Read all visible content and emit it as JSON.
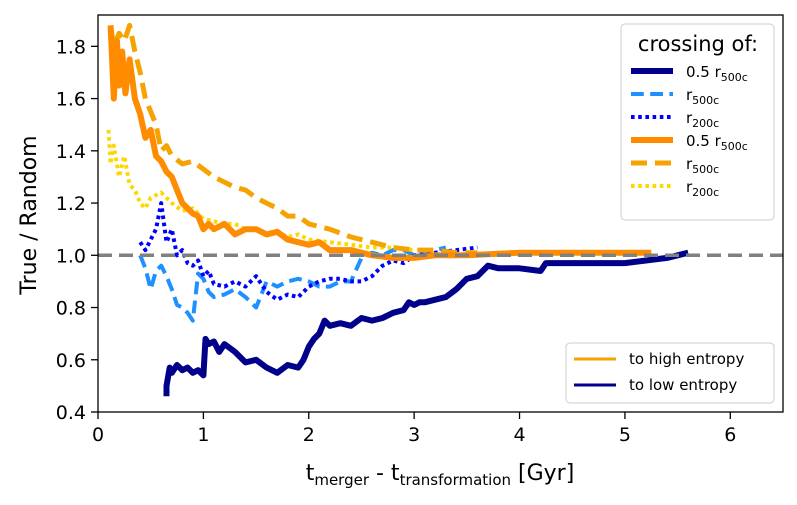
{
  "chart_data": {
    "type": "line",
    "xlabel": {
      "main": "t",
      "sub1": "merger",
      "mid": " - t",
      "sub2": "transformation",
      "unit": " [Gyr]"
    },
    "ylabel": "True / Random",
    "xlim": [
      0,
      6.5
    ],
    "ylim": [
      0.4,
      1.92
    ],
    "xticks": [
      "0",
      "1",
      "2",
      "3",
      "4",
      "5",
      "6"
    ],
    "xtick_values": [
      0,
      1,
      2,
      3,
      4,
      5,
      6
    ],
    "yticks": [
      "0.4",
      "0.6",
      "0.8",
      "1.0",
      "1.2",
      "1.4",
      "1.6",
      "1.8"
    ],
    "ytick_values": [
      0.4,
      0.6,
      0.8,
      1.0,
      1.2,
      1.4,
      1.6,
      1.8
    ],
    "reference_line": {
      "y": 1.0,
      "color": "#808080",
      "style": "dashed"
    },
    "colors": {
      "high_entropy": "#ff8c00",
      "high_entropy_dash": "#f5a300",
      "high_entropy_dot": "#ffd700",
      "low_entropy": "#00008b",
      "low_entropy_dash": "#1e90ff",
      "low_entropy_dot": "#0000ff"
    },
    "series": [
      {
        "name": "0.5 r500c",
        "direction": "to low entropy",
        "color": "#00008b",
        "style": "solid",
        "width": 6,
        "x": [
          0.65,
          0.65,
          0.68,
          0.7,
          0.75,
          0.8,
          0.85,
          0.9,
          0.95,
          1.0,
          1.02,
          1.05,
          1.1,
          1.15,
          1.2,
          1.3,
          1.4,
          1.5,
          1.6,
          1.7,
          1.8,
          1.9,
          1.95,
          2.0,
          2.05,
          2.1,
          2.15,
          2.2,
          2.3,
          2.4,
          2.5,
          2.6,
          2.7,
          2.8,
          2.9,
          2.95,
          3.0,
          3.05,
          3.1,
          3.2,
          3.3,
          3.4,
          3.5,
          3.6,
          3.7,
          3.8,
          4.0,
          4.2,
          4.25,
          4.3,
          4.5,
          4.8,
          5.0,
          5.2,
          5.4,
          5.6
        ],
        "y": [
          0.46,
          0.5,
          0.57,
          0.55,
          0.58,
          0.56,
          0.57,
          0.55,
          0.56,
          0.54,
          0.68,
          0.66,
          0.67,
          0.63,
          0.66,
          0.63,
          0.59,
          0.6,
          0.57,
          0.55,
          0.58,
          0.57,
          0.6,
          0.65,
          0.68,
          0.7,
          0.75,
          0.73,
          0.74,
          0.73,
          0.76,
          0.75,
          0.76,
          0.78,
          0.79,
          0.82,
          0.81,
          0.82,
          0.82,
          0.83,
          0.84,
          0.87,
          0.91,
          0.92,
          0.96,
          0.95,
          0.95,
          0.94,
          0.97,
          0.97,
          0.97,
          0.97,
          0.97,
          0.98,
          0.99,
          1.01
        ]
      },
      {
        "name": "r500c",
        "direction": "to low entropy",
        "color": "#1e90ff",
        "style": "dashed",
        "width": 4,
        "x": [
          0.4,
          0.45,
          0.5,
          0.55,
          0.6,
          0.65,
          0.7,
          0.75,
          0.8,
          0.85,
          0.9,
          0.95,
          1.0,
          1.05,
          1.1,
          1.2,
          1.3,
          1.4,
          1.5,
          1.6,
          1.7,
          1.8,
          1.9,
          2.0,
          2.1,
          2.2,
          2.3,
          2.4,
          2.5,
          2.6,
          2.7,
          2.8,
          2.9,
          3.0,
          3.1,
          3.2,
          3.3
        ],
        "y": [
          1.0,
          0.95,
          0.87,
          0.94,
          0.96,
          0.92,
          0.87,
          0.81,
          0.8,
          0.78,
          0.75,
          0.93,
          0.91,
          0.86,
          0.84,
          0.85,
          0.87,
          0.84,
          0.8,
          0.9,
          0.88,
          0.9,
          0.91,
          0.9,
          0.88,
          0.88,
          0.9,
          0.9,
          0.99,
          1.01,
          1.0,
          1.02,
          1.02,
          1.0,
          1.01,
          1.02,
          1.03
        ]
      },
      {
        "name": "r200c",
        "direction": "to low entropy",
        "color": "#0000ff",
        "style": "dotted",
        "width": 4,
        "x": [
          0.4,
          0.45,
          0.5,
          0.55,
          0.6,
          0.65,
          0.7,
          0.75,
          0.8,
          0.85,
          0.9,
          0.95,
          1.0,
          1.05,
          1.1,
          1.2,
          1.3,
          1.4,
          1.5,
          1.6,
          1.7,
          1.8,
          1.9,
          2.0,
          2.1,
          2.2,
          2.3,
          2.4,
          2.5,
          2.6,
          2.7,
          2.8,
          2.9,
          3.0,
          3.2,
          3.4,
          3.6
        ],
        "y": [
          1.05,
          1.02,
          1.06,
          1.1,
          1.2,
          1.05,
          1.1,
          1.0,
          1.02,
          0.97,
          0.96,
          0.98,
          0.92,
          0.94,
          0.89,
          0.88,
          0.9,
          0.88,
          0.92,
          0.86,
          0.83,
          0.85,
          0.84,
          0.88,
          0.9,
          0.91,
          0.91,
          0.9,
          0.9,
          0.92,
          0.96,
          0.98,
          0.97,
          1.0,
          1.01,
          1.02,
          1.03
        ]
      },
      {
        "name": "0.5 r500c",
        "direction": "to high entropy",
        "color": "#ff8c00",
        "style": "solid",
        "width": 6,
        "x": [
          0.12,
          0.15,
          0.18,
          0.2,
          0.23,
          0.26,
          0.3,
          0.35,
          0.4,
          0.45,
          0.5,
          0.55,
          0.6,
          0.65,
          0.7,
          0.75,
          0.8,
          0.85,
          0.9,
          0.95,
          1.0,
          1.05,
          1.1,
          1.2,
          1.3,
          1.4,
          1.5,
          1.6,
          1.7,
          1.8,
          1.9,
          2.0,
          2.1,
          2.2,
          2.4,
          2.6,
          2.8,
          3.0,
          3.2,
          3.5,
          4.0,
          4.5,
          5.0,
          5.25
        ],
        "y": [
          1.88,
          1.6,
          1.82,
          1.65,
          1.78,
          1.62,
          1.75,
          1.6,
          1.54,
          1.45,
          1.48,
          1.38,
          1.36,
          1.32,
          1.3,
          1.25,
          1.2,
          1.18,
          1.16,
          1.15,
          1.1,
          1.12,
          1.1,
          1.12,
          1.08,
          1.1,
          1.1,
          1.08,
          1.09,
          1.06,
          1.05,
          1.04,
          1.05,
          1.02,
          1.02,
          1.0,
          0.99,
          0.99,
          1.0,
          1.0,
          1.01,
          1.01,
          1.01,
          1.01
        ]
      },
      {
        "name": "r500c",
        "direction": "to high entropy",
        "color": "#f5a300",
        "style": "dashed",
        "width": 5,
        "x": [
          0.12,
          0.15,
          0.2,
          0.25,
          0.3,
          0.35,
          0.4,
          0.45,
          0.5,
          0.55,
          0.6,
          0.65,
          0.7,
          0.8,
          0.9,
          1.0,
          1.1,
          1.2,
          1.3,
          1.4,
          1.5,
          1.6,
          1.7,
          1.8,
          1.9,
          2.0,
          2.2,
          2.4,
          2.6,
          2.8,
          3.0,
          3.2,
          3.4,
          3.6
        ],
        "y": [
          1.88,
          1.8,
          1.85,
          1.82,
          1.88,
          1.78,
          1.7,
          1.6,
          1.55,
          1.5,
          1.4,
          1.42,
          1.38,
          1.35,
          1.36,
          1.33,
          1.3,
          1.28,
          1.26,
          1.25,
          1.22,
          1.2,
          1.18,
          1.15,
          1.15,
          1.12,
          1.1,
          1.07,
          1.05,
          1.03,
          1.02,
          1.02,
          1.01,
          1.01
        ]
      },
      {
        "name": "r200c",
        "direction": "to high entropy",
        "color": "#ffd700",
        "style": "dotted",
        "width": 4,
        "x": [
          0.1,
          0.12,
          0.15,
          0.2,
          0.25,
          0.3,
          0.35,
          0.4,
          0.45,
          0.5,
          0.6,
          0.7,
          0.8,
          0.9,
          1.0,
          1.1,
          1.2,
          1.3,
          1.4,
          1.5,
          1.6,
          1.7,
          1.8,
          1.9,
          2.0,
          2.2,
          2.4,
          2.6,
          2.8,
          3.0
        ],
        "y": [
          1.48,
          1.35,
          1.42,
          1.3,
          1.38,
          1.27,
          1.25,
          1.2,
          1.18,
          1.22,
          1.24,
          1.2,
          1.17,
          1.18,
          1.14,
          1.13,
          1.12,
          1.12,
          1.1,
          1.1,
          1.08,
          1.09,
          1.07,
          1.08,
          1.06,
          1.05,
          1.04,
          1.03,
          1.03,
          1.02
        ]
      }
    ],
    "legend_entries": {
      "title": "crossing of:",
      "items": [
        {
          "label_main": "0.5 r",
          "label_sub": "500c",
          "color": "#00008b",
          "style": "solid",
          "width": 6
        },
        {
          "label_main": "r",
          "label_sub": "500c",
          "color": "#1e90ff",
          "style": "dashed",
          "width": 4
        },
        {
          "label_main": "r",
          "label_sub": "200c",
          "color": "#0000ff",
          "style": "dotted",
          "width": 4
        },
        {
          "label_main": "0.5 r",
          "label_sub": "500c",
          "color": "#ff8c00",
          "style": "solid",
          "width": 6
        },
        {
          "label_main": "r",
          "label_sub": "500c",
          "color": "#f5a300",
          "style": "dashed",
          "width": 5
        },
        {
          "label_main": "r",
          "label_sub": "200c",
          "color": "#ffd700",
          "style": "dotted",
          "width": 4
        }
      ],
      "position": "top-right"
    },
    "legend_direction": {
      "items": [
        {
          "label": "to high entropy",
          "color": "#f5a300"
        },
        {
          "label": "to low entropy",
          "color": "#00008b"
        }
      ],
      "position": "bottom-right"
    }
  }
}
